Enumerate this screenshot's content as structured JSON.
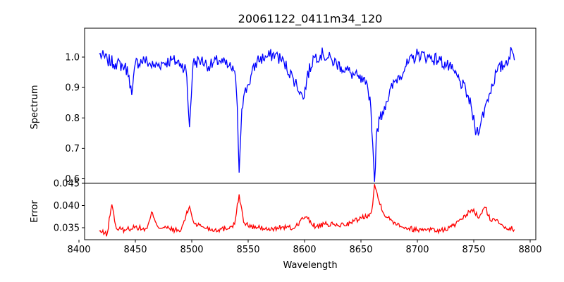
{
  "chart_data": [
    {
      "type": "line",
      "title": "20061122_0411m34_120",
      "xlabel": "",
      "ylabel": "Spectrum",
      "xlim": [
        8405,
        8805
      ],
      "ylim": [
        0.585,
        1.095
      ],
      "yticks": [
        0.6,
        0.7,
        0.8,
        0.9,
        1.0
      ],
      "ytick_labels": [
        "0.6",
        "0.7",
        "0.8",
        "0.9",
        "1.0"
      ],
      "series": [
        {
          "name": "spectrum",
          "color": "#0000ff",
          "x": [
            8418,
            8425,
            8432,
            8440,
            8444,
            8447,
            8450,
            8458,
            8466,
            8474,
            8482,
            8490,
            8495,
            8498,
            8501,
            8508,
            8516,
            8524,
            8532,
            8537,
            8540,
            8542,
            8544,
            8546,
            8550,
            8558,
            8566,
            8574,
            8582,
            8590,
            8596,
            8599,
            8602,
            8608,
            8616,
            8624,
            8632,
            8640,
            8648,
            8654,
            8658,
            8660,
            8662,
            8664,
            8667,
            8672,
            8680,
            8690,
            8700,
            8710,
            8720,
            8730,
            8738,
            8744,
            8748,
            8752,
            8756,
            8762,
            8770,
            8778,
            8784,
            8786
          ],
          "y": [
            1.01,
            0.99,
            0.98,
            0.97,
            0.95,
            0.87,
            0.98,
            0.99,
            0.97,
            0.98,
            0.99,
            0.98,
            0.96,
            0.77,
            0.98,
            0.99,
            0.97,
            0.99,
            0.97,
            0.96,
            0.89,
            0.62,
            0.82,
            0.87,
            0.91,
            0.99,
            1.0,
            1.01,
            0.98,
            0.93,
            0.89,
            0.86,
            0.93,
            1.0,
            1.01,
            0.99,
            0.97,
            0.95,
            0.93,
            0.91,
            0.87,
            0.75,
            0.59,
            0.76,
            0.8,
            0.85,
            0.92,
            0.97,
            1.01,
            1.0,
            0.99,
            0.96,
            0.92,
            0.88,
            0.83,
            0.75,
            0.78,
            0.86,
            0.95,
            0.98,
            1.02,
            0.99
          ]
        }
      ]
    },
    {
      "type": "line",
      "title": "",
      "xlabel": "Wavelength",
      "ylabel": "Error",
      "xlim": [
        8405,
        8805
      ],
      "ylim": [
        0.0323,
        0.045
      ],
      "xticks": [
        8400,
        8450,
        8500,
        8550,
        8600,
        8650,
        8700,
        8750,
        8800
      ],
      "xtick_labels": [
        "8400",
        "8450",
        "8500",
        "8550",
        "8600",
        "8650",
        "8700",
        "8750",
        "8800"
      ],
      "yticks": [
        0.035,
        0.04,
        0.045
      ],
      "ytick_labels": [
        "0.035",
        "0.040",
        "0.045"
      ],
      "series": [
        {
          "name": "error",
          "color": "#ff0000",
          "x": [
            8418,
            8425,
            8429,
            8433,
            8440,
            8450,
            8460,
            8465,
            8470,
            8480,
            8490,
            8498,
            8502,
            8510,
            8520,
            8530,
            8538,
            8542,
            8546,
            8552,
            8560,
            8570,
            8580,
            8590,
            8600,
            8610,
            8620,
            8630,
            8640,
            8650,
            8656,
            8660,
            8662,
            8666,
            8672,
            8680,
            8690,
            8700,
            8710,
            8720,
            8730,
            8740,
            8748,
            8755,
            8760,
            8765,
            8770,
            8778,
            8786
          ],
          "y": [
            0.0342,
            0.0335,
            0.0405,
            0.0348,
            0.0345,
            0.0352,
            0.0345,
            0.0385,
            0.0352,
            0.0348,
            0.0342,
            0.0398,
            0.036,
            0.0352,
            0.0345,
            0.0348,
            0.0358,
            0.0425,
            0.0362,
            0.0352,
            0.035,
            0.0345,
            0.0352,
            0.0348,
            0.0375,
            0.0352,
            0.0358,
            0.0355,
            0.036,
            0.0372,
            0.0378,
            0.039,
            0.0448,
            0.041,
            0.0375,
            0.0362,
            0.035,
            0.0345,
            0.0348,
            0.0342,
            0.0352,
            0.0368,
            0.0392,
            0.0372,
            0.0398,
            0.0365,
            0.0368,
            0.0352,
            0.0346
          ]
        }
      ]
    }
  ]
}
